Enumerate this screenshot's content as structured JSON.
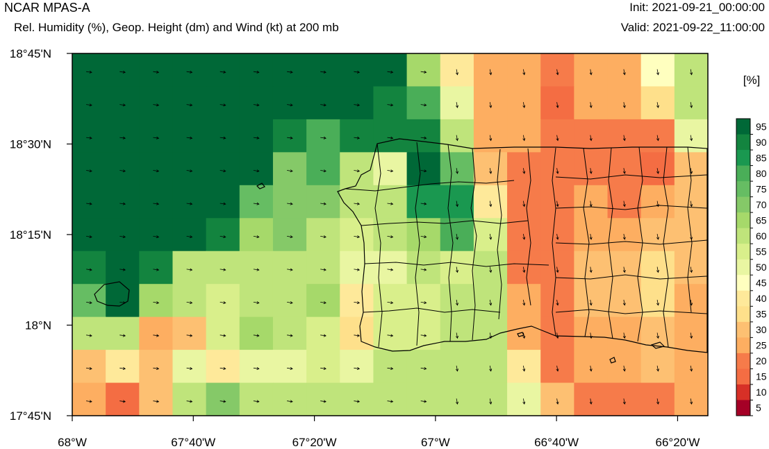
{
  "header": {
    "title": "NCAR MPAS-A",
    "subtitle": "Rel. Humidity (%), Geop. Height (dm) and Wind (kt) at 200 mb",
    "init": "Init: 2021-09-21_00:00:00",
    "valid": "Valid: 2021-09-22_11:00:00"
  },
  "chart_data": {
    "type": "heatmap",
    "title": "NCAR MPAS-A",
    "subtitle": "Rel. Humidity (%), Geop. Height (dm) and Wind (kt) at 200 mb",
    "x_range_deg": [
      -68.0,
      -66.25
    ],
    "y_range_deg": [
      17.75,
      18.75
    ],
    "x_ticks": [
      {
        "value": -68.0,
        "label": "68°W"
      },
      {
        "value": -67.6667,
        "label": "67°40'W"
      },
      {
        "value": -67.3333,
        "label": "67°20'W"
      },
      {
        "value": -67.0,
        "label": "67°W"
      },
      {
        "value": -66.6667,
        "label": "66°40'W"
      },
      {
        "value": -66.3333,
        "label": "66°20'W"
      }
    ],
    "y_ticks": [
      {
        "value": 18.75,
        "label": "18°45'N"
      },
      {
        "value": 18.5,
        "label": "18°30'N"
      },
      {
        "value": 18.25,
        "label": "18°15'N"
      },
      {
        "value": 18.0,
        "label": "18°N"
      },
      {
        "value": 17.75,
        "label": "17°45'N"
      }
    ],
    "colorbar": {
      "unit_label": "[%]",
      "labels": [
        "95",
        "90",
        "85",
        "80",
        "75",
        "70",
        "65",
        "60",
        "55",
        "50",
        "45",
        "40",
        "35",
        "30",
        "25",
        "20",
        "15",
        "10",
        "5"
      ],
      "colors": [
        "#006837",
        "#13843f",
        "#1a9850",
        "#4aae58",
        "#66bd63",
        "#85c968",
        "#a6d96a",
        "#bfe47b",
        "#d9ef8b",
        "#e9f6a2",
        "#ffffbf",
        "#fee99a",
        "#fee08b",
        "#fdc072",
        "#fdae61",
        "#f67b4a",
        "#f46d43",
        "#d73027",
        "#a50026"
      ]
    },
    "grid_rows_north_to_south": [
      [
        95,
        95,
        95,
        95,
        95,
        95,
        95,
        95,
        95,
        95,
        63,
        40,
        25,
        25,
        20,
        25,
        25,
        45,
        58
      ],
      [
        95,
        95,
        95,
        95,
        95,
        95,
        95,
        95,
        95,
        90,
        80,
        50,
        25,
        25,
        15,
        25,
        25,
        35,
        58
      ],
      [
        95,
        95,
        95,
        95,
        95,
        95,
        90,
        82,
        90,
        90,
        90,
        60,
        25,
        25,
        20,
        20,
        20,
        20,
        50
      ],
      [
        95,
        95,
        95,
        95,
        95,
        95,
        70,
        80,
        60,
        52,
        95,
        75,
        28,
        20,
        20,
        20,
        20,
        15,
        30
      ],
      [
        95,
        95,
        95,
        95,
        95,
        75,
        70,
        70,
        60,
        60,
        85,
        85,
        40,
        20,
        20,
        25,
        20,
        25,
        30
      ],
      [
        95,
        95,
        95,
        95,
        90,
        65,
        70,
        62,
        55,
        62,
        65,
        80,
        55,
        20,
        20,
        25,
        25,
        30,
        30
      ],
      [
        90,
        95,
        90,
        60,
        60,
        60,
        60,
        60,
        50,
        50,
        62,
        55,
        60,
        20,
        20,
        30,
        30,
        35,
        30
      ],
      [
        75,
        95,
        65,
        60,
        55,
        60,
        62,
        65,
        40,
        55,
        55,
        62,
        60,
        25,
        20,
        30,
        30,
        35,
        25
      ],
      [
        60,
        60,
        25,
        30,
        55,
        65,
        60,
        55,
        35,
        55,
        55,
        60,
        60,
        25,
        20,
        25,
        25,
        30,
        25
      ],
      [
        30,
        40,
        30,
        50,
        40,
        50,
        50,
        55,
        50,
        60,
        60,
        60,
        60,
        40,
        20,
        25,
        25,
        30,
        25
      ],
      [
        25,
        15,
        30,
        60,
        70,
        60,
        60,
        60,
        60,
        60,
        60,
        60,
        60,
        50,
        30,
        20,
        20,
        20,
        25
      ]
    ],
    "wind_direction": "westerly (arrows pointing east over most of the domain)",
    "geography": "Puerto Rico (municipality boundaries drawn) and Mona Island"
  }
}
